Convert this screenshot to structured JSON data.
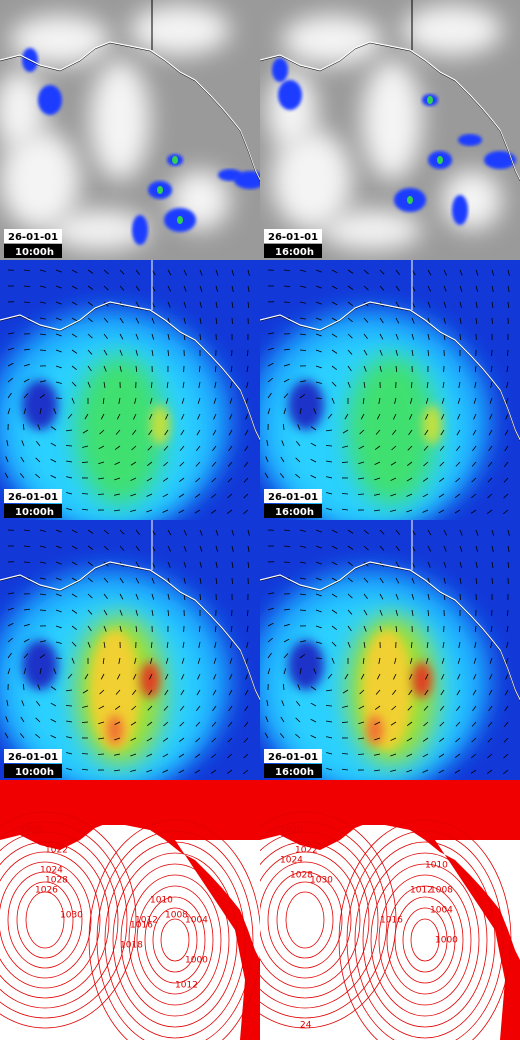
{
  "panels": [
    {
      "date": "26-01-01",
      "time": "10:00h"
    },
    {
      "date": "26-01-01",
      "time": "16:00h"
    },
    {
      "date": "26-01-01",
      "time": "10:00h"
    },
    {
      "date": "26-01-01",
      "time": "16:00h"
    },
    {
      "date": "26-01-01",
      "time": "10:00h"
    },
    {
      "date": "26-01-01",
      "time": "16:00h"
    }
  ],
  "contour_maps": [
    {
      "labels": [
        "1020",
        "1024",
        "1026",
        "1028",
        "1030",
        "1022",
        "1018",
        "1016",
        "1012",
        "1010",
        "1008",
        "1004",
        "1000",
        "1012"
      ]
    },
    {
      "labels": [
        "1020",
        "1022",
        "1024",
        "1028",
        "1030",
        "1012",
        "1010",
        "1016",
        "1008",
        "1004",
        "1000",
        "24"
      ]
    }
  ]
}
